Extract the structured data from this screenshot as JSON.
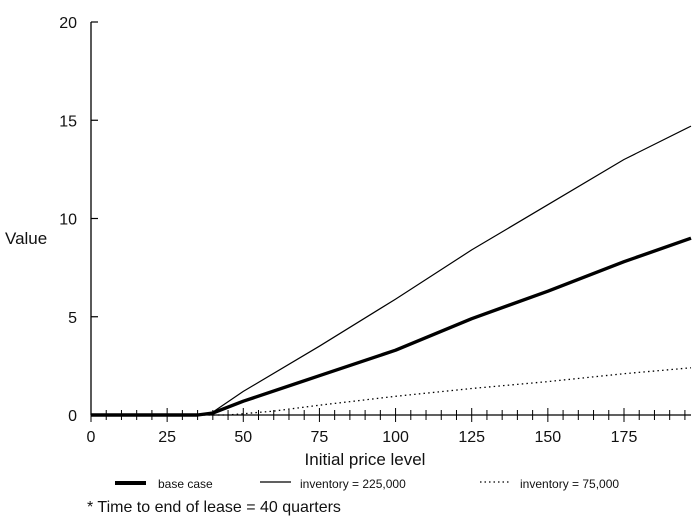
{
  "chart_data": {
    "type": "line",
    "title": "",
    "xlabel": "Initial price level",
    "ylabel": "Value",
    "xlim": [
      0,
      197
    ],
    "ylim": [
      0,
      20
    ],
    "x_ticks": [
      0,
      25,
      50,
      75,
      100,
      125,
      150,
      175
    ],
    "y_ticks": [
      0,
      5,
      10,
      15,
      20
    ],
    "grid": false,
    "legend_position": "bottom",
    "series": [
      {
        "name": "base case",
        "style": "thick-solid",
        "color": "#000000",
        "points": [
          [
            0,
            0
          ],
          [
            20,
            0
          ],
          [
            35,
            0
          ],
          [
            40,
            0.1
          ],
          [
            50,
            0.7
          ],
          [
            75,
            2.0
          ],
          [
            100,
            3.3
          ],
          [
            125,
            4.9
          ],
          [
            150,
            6.3
          ],
          [
            175,
            7.8
          ],
          [
            197,
            9.0
          ]
        ]
      },
      {
        "name": "inventory = 225,000",
        "style": "thin-solid",
        "color": "#000000",
        "points": [
          [
            0,
            0
          ],
          [
            35,
            0
          ],
          [
            40,
            0.15
          ],
          [
            50,
            1.2
          ],
          [
            75,
            3.5
          ],
          [
            100,
            5.9
          ],
          [
            125,
            8.4
          ],
          [
            150,
            10.7
          ],
          [
            175,
            13.0
          ],
          [
            197,
            14.7
          ]
        ]
      },
      {
        "name": "inventory = 75,000",
        "style": "dotted",
        "color": "#000000",
        "points": [
          [
            0,
            0
          ],
          [
            45,
            0
          ],
          [
            60,
            0.2
          ],
          [
            75,
            0.5
          ],
          [
            100,
            0.95
          ],
          [
            125,
            1.35
          ],
          [
            150,
            1.7
          ],
          [
            175,
            2.1
          ],
          [
            197,
            2.4
          ]
        ]
      }
    ],
    "footnote": "* Time to end of lease = 40 quarters"
  }
}
